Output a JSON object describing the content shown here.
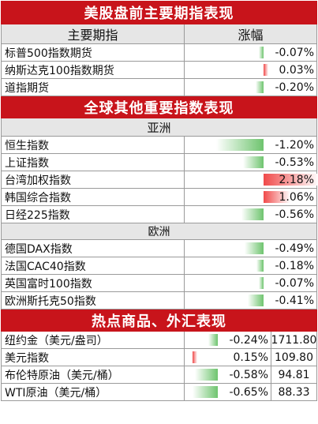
{
  "section1": {
    "title": "美股盘前主要期指表现",
    "header": {
      "name": "主要期指",
      "change": "涨幅"
    },
    "rows": [
      {
        "name": "标普500指数期货",
        "change": "-0.07%",
        "magnitude": 0.07
      },
      {
        "name": "纳斯达克100指数期货",
        "change": "0.03%",
        "magnitude": 0.03
      },
      {
        "name": "道指期货",
        "change": "-0.20%",
        "magnitude": 0.2
      }
    ]
  },
  "section2": {
    "title": "全球其他重要指数表现",
    "asia": {
      "label": "亚洲",
      "rows": [
        {
          "name": "恒生指数",
          "change": "-1.20%",
          "magnitude": 1.2
        },
        {
          "name": "上证指数",
          "change": "-0.53%",
          "magnitude": 0.53
        },
        {
          "name": "台湾加权指数",
          "change": "2.18%",
          "magnitude": 2.18
        },
        {
          "name": "韩国综合指数",
          "change": "1.06%",
          "magnitude": 1.06
        },
        {
          "name": "日经225指数",
          "change": "-0.56%",
          "magnitude": 0.56
        }
      ]
    },
    "europe": {
      "label": "欧洲",
      "rows": [
        {
          "name": "德国DAX指数",
          "change": "-0.49%",
          "magnitude": 0.49
        },
        {
          "name": "法国CAC40指数",
          "change": "-0.18%",
          "magnitude": 0.18
        },
        {
          "name": "英国富时100指数",
          "change": "-0.07%",
          "magnitude": 0.07
        },
        {
          "name": "欧洲斯托克50指数",
          "change": "-0.41%",
          "magnitude": 0.41
        }
      ]
    }
  },
  "section3": {
    "title": "热点商品、外汇表现",
    "rows": [
      {
        "name": "纽约金（美元/盎司）",
        "change": "-0.24%",
        "price": "1711.80",
        "magnitude": 0.24
      },
      {
        "name": "美元指数",
        "change": "0.15%",
        "price": "109.80",
        "magnitude": 0.15
      },
      {
        "name": "布伦特原油（美元/桶）",
        "change": "-0.58%",
        "price": "94.81",
        "magnitude": 0.58
      },
      {
        "name": "WTI原油（美元/桶）",
        "change": "-0.65%",
        "price": "88.33",
        "magnitude": 0.65
      }
    ]
  },
  "colors": {
    "banner": "#c8141b",
    "negative": "#6ec46e",
    "positive": "#f04a4a",
    "header_bg": "#e6e6e6"
  }
}
